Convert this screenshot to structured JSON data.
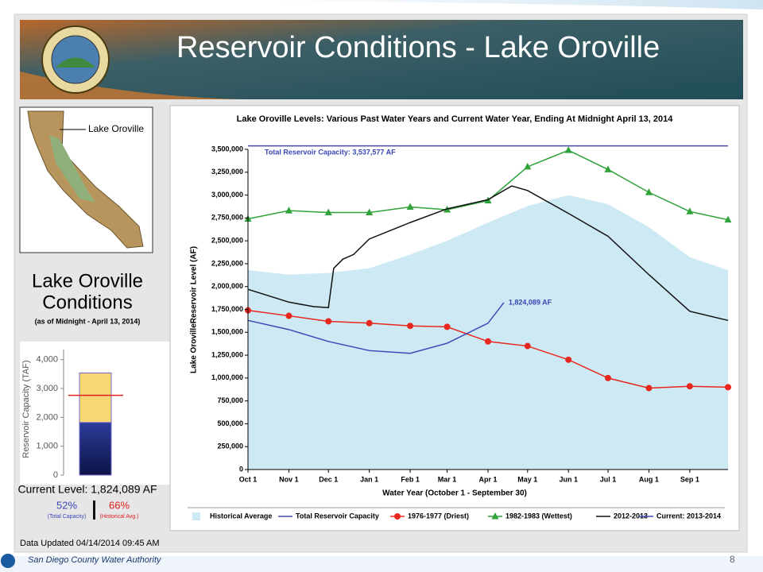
{
  "header": {
    "title": "Reservoir Conditions - Lake Oroville"
  },
  "map": {
    "label": "Lake Oroville"
  },
  "conditions": {
    "title_lines": [
      "Lake Oroville",
      "Conditions"
    ],
    "subtitle": "(as of Midnight - April 13, 2014)",
    "current_level": "Current Level: 1,824,089 AF",
    "pct_capacity": "52%",
    "pct_capacity_label": "(Total Capacity)",
    "pct_historical": "66%",
    "pct_historical_label": "(Historical Avg.)"
  },
  "updated": "Data Updated 04/14/2014 09:45 AM",
  "footer": {
    "org": "San Diego County Water Authority",
    "page": "8"
  },
  "chart_data": [
    {
      "type": "line",
      "title": "Lake Oroville Levels: Various Past Water Years and Current Water Year, Ending At Midnight April 13, 2014",
      "x_label": "Water Year (October 1 - September 30)",
      "y_label": "Lake OrovilleReservoir Level (AF)",
      "capacity_label": "Total Reservoir Capacity: 3,537,577 AF",
      "xlim": [
        0,
        364
      ],
      "xticks": [
        {
          "value": 0,
          "label": "Oct 1"
        },
        {
          "value": 31,
          "label": "Nov 1"
        },
        {
          "value": 61,
          "label": "Dec 1"
        },
        {
          "value": 92,
          "label": "Jan 1"
        },
        {
          "value": 123,
          "label": "Feb 1"
        },
        {
          "value": 151,
          "label": "Mar 1"
        },
        {
          "value": 182,
          "label": "Apr 1"
        },
        {
          "value": 212,
          "label": "May 1"
        },
        {
          "value": 243,
          "label": "Jun 1"
        },
        {
          "value": 273,
          "label": "Jul 1"
        },
        {
          "value": 304,
          "label": "Aug 1"
        },
        {
          "value": 335,
          "label": "Sep 1"
        }
      ],
      "ylim": [
        0,
        3500000
      ],
      "yticks": [
        0,
        {
          "value": 250000,
          "label": "250,000"
        },
        {
          "value": 500000,
          "label": "500,000"
        },
        {
          "value": 750000,
          "label": "750,000"
        },
        {
          "value": 1000000,
          "label": "1,000,000"
        },
        {
          "value": 1250000,
          "label": "1,250,000"
        },
        {
          "value": 1500000,
          "label": "1,500,000"
        },
        {
          "value": 1750000,
          "label": "1,750,000"
        },
        {
          "value": 2000000,
          "label": "2,000,000"
        },
        {
          "value": 2250000,
          "label": "2,250,000"
        },
        {
          "value": 2500000,
          "label": "2,500,000"
        },
        {
          "value": 2750000,
          "label": "2,750,000"
        },
        {
          "value": 3000000,
          "label": "3,000,000"
        },
        {
          "value": 3250000,
          "label": "3,250,000"
        },
        {
          "value": 3500000,
          "label": "3,500,000"
        }
      ],
      "grid": false,
      "series": [
        {
          "name": "Historical Average",
          "type": "area",
          "color": "#cde9f4",
          "x": [
            0,
            31,
            61,
            92,
            123,
            151,
            182,
            212,
            243,
            273,
            304,
            335,
            364
          ],
          "values": [
            2180000,
            2130000,
            2150000,
            2200000,
            2350000,
            2500000,
            2700000,
            2880000,
            3000000,
            2900000,
            2650000,
            2320000,
            2180000
          ]
        },
        {
          "name": "Total Reservoir Capacity",
          "type": "line",
          "color": "#4a4aa8",
          "x": [
            0,
            364
          ],
          "values": [
            3537577,
            3537577
          ]
        },
        {
          "name": "1976-1977 (Driest)",
          "type": "line",
          "color": "#e8281e",
          "marker": "circle",
          "x": [
            0,
            31,
            61,
            92,
            123,
            151,
            182,
            212,
            243,
            273,
            304,
            335,
            364
          ],
          "values": [
            1740000,
            1680000,
            1620000,
            1600000,
            1570000,
            1560000,
            1400000,
            1350000,
            1200000,
            1000000,
            890000,
            910000,
            900000
          ]
        },
        {
          "name": "1982-1983 (Wettest)",
          "type": "line",
          "color": "#2fa23a",
          "marker": "triangle",
          "x": [
            0,
            31,
            61,
            92,
            123,
            151,
            182,
            212,
            243,
            273,
            304,
            335,
            364
          ],
          "values": [
            2740000,
            2830000,
            2810000,
            2810000,
            2870000,
            2840000,
            2940000,
            3310000,
            3490000,
            3280000,
            3030000,
            2820000,
            2730000
          ]
        },
        {
          "name": "2012-2013",
          "type": "line",
          "color": "#111111",
          "x": [
            0,
            31,
            50,
            61,
            65,
            72,
            80,
            92,
            123,
            151,
            182,
            200,
            212,
            243,
            273,
            304,
            335,
            364
          ],
          "values": [
            1970000,
            1830000,
            1780000,
            1770000,
            2200000,
            2300000,
            2350000,
            2520000,
            2700000,
            2850000,
            2950000,
            3100000,
            3050000,
            2800000,
            2550000,
            2130000,
            1730000,
            1630000
          ]
        },
        {
          "name": "Current: 2013-2014",
          "type": "line",
          "color": "#3a48b8",
          "x": [
            0,
            31,
            61,
            92,
            123,
            151,
            182,
            194
          ],
          "values": [
            1630000,
            1530000,
            1400000,
            1300000,
            1270000,
            1380000,
            1600000,
            1824089
          ],
          "value_labels": [
            null,
            null,
            null,
            null,
            null,
            null,
            null,
            "1,824,089 AF"
          ]
        }
      ]
    },
    {
      "type": "gauge",
      "y_label": "Reservoir Capacity (TAF)",
      "ylim": [
        0,
        4350
      ],
      "yticks": [
        0,
        {
          "value": 1000,
          "label": "1,000"
        },
        {
          "value": 2000,
          "label": "2,000"
        },
        {
          "value": 3000,
          "label": "3,000"
        },
        {
          "value": 4000,
          "label": "4,000"
        }
      ],
      "capacity": 3538,
      "capacity_color": "#f7d774",
      "current": 1824,
      "current_color": "#1c2a78",
      "historical": 2764,
      "historical_color": "#e02020"
    }
  ]
}
